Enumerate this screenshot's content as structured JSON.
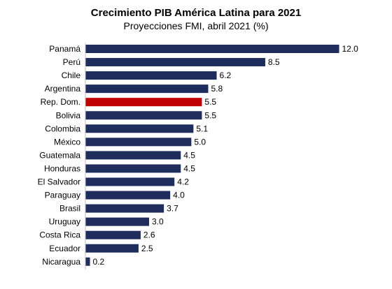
{
  "chart_data": {
    "type": "bar",
    "orientation": "horizontal",
    "title": "Crecimiento PIB América Latina para 2021",
    "subtitle": "Proyecciones FMI, abril 2021 (%)",
    "categories": [
      "Panamá",
      "Perú",
      "Chile",
      "Argentina",
      "Rep. Dom.",
      "Bolivia",
      "Colombia",
      "México",
      "Guatemala",
      "Honduras",
      "El Salvador",
      "Paraguay",
      "Brasil",
      "Uruguay",
      "Costa Rica",
      "Ecuador",
      "Nicaragua"
    ],
    "values": [
      12.0,
      8.5,
      6.2,
      5.8,
      5.5,
      5.5,
      5.1,
      5.0,
      4.5,
      4.5,
      4.2,
      4.0,
      3.7,
      3.0,
      2.6,
      2.5,
      0.2
    ],
    "value_labels": [
      "12.0",
      "8.5",
      "6.2",
      "5.8",
      "5.5",
      "5.5",
      "5.1",
      "5.0",
      "4.5",
      "4.5",
      "4.2",
      "4.0",
      "3.7",
      "3.0",
      "2.6",
      "2.5",
      "0.2"
    ],
    "highlight_category": "Rep. Dom.",
    "colors": {
      "bar": "#1f2d5c",
      "highlight": "#c00000"
    },
    "xlim": [
      0,
      12.0
    ],
    "grid": false,
    "legend": false
  }
}
